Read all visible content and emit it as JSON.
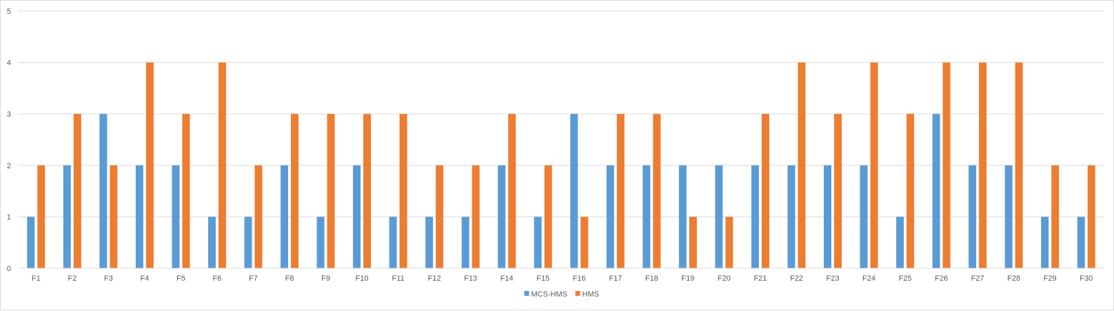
{
  "chart_data": {
    "type": "bar",
    "categories": [
      "F1",
      "F2",
      "F3",
      "F4",
      "F5",
      "F6",
      "F7",
      "F8",
      "F9",
      "F10",
      "F11",
      "F12",
      "F13",
      "F14",
      "F15",
      "F16",
      "F17",
      "F18",
      "F19",
      "F20",
      "F21",
      "F22",
      "F23",
      "F24",
      "F25",
      "F26",
      "F27",
      "F28",
      "F29",
      "F30"
    ],
    "series": [
      {
        "name": "MCS-HMS",
        "color": "#5b9bd5",
        "values": [
          1,
          2,
          3,
          2,
          2,
          1,
          1,
          2,
          1,
          2,
          1,
          1,
          1,
          2,
          1,
          3,
          2,
          2,
          2,
          2,
          2,
          2,
          2,
          2,
          1,
          3,
          2,
          2,
          1,
          1
        ]
      },
      {
        "name": "HMS",
        "color": "#ed7d31",
        "values": [
          2,
          3,
          2,
          4,
          3,
          4,
          2,
          3,
          3,
          3,
          3,
          2,
          2,
          3,
          2,
          1,
          3,
          3,
          1,
          1,
          3,
          4,
          3,
          4,
          3,
          4,
          4,
          4,
          2,
          2
        ]
      }
    ],
    "ylim": [
      0,
      5
    ],
    "yticks": [
      "0",
      "1",
      "2",
      "3",
      "4",
      "5"
    ],
    "grid": true,
    "legend": "bottom",
    "title": "",
    "xlabel": "",
    "ylabel": ""
  }
}
